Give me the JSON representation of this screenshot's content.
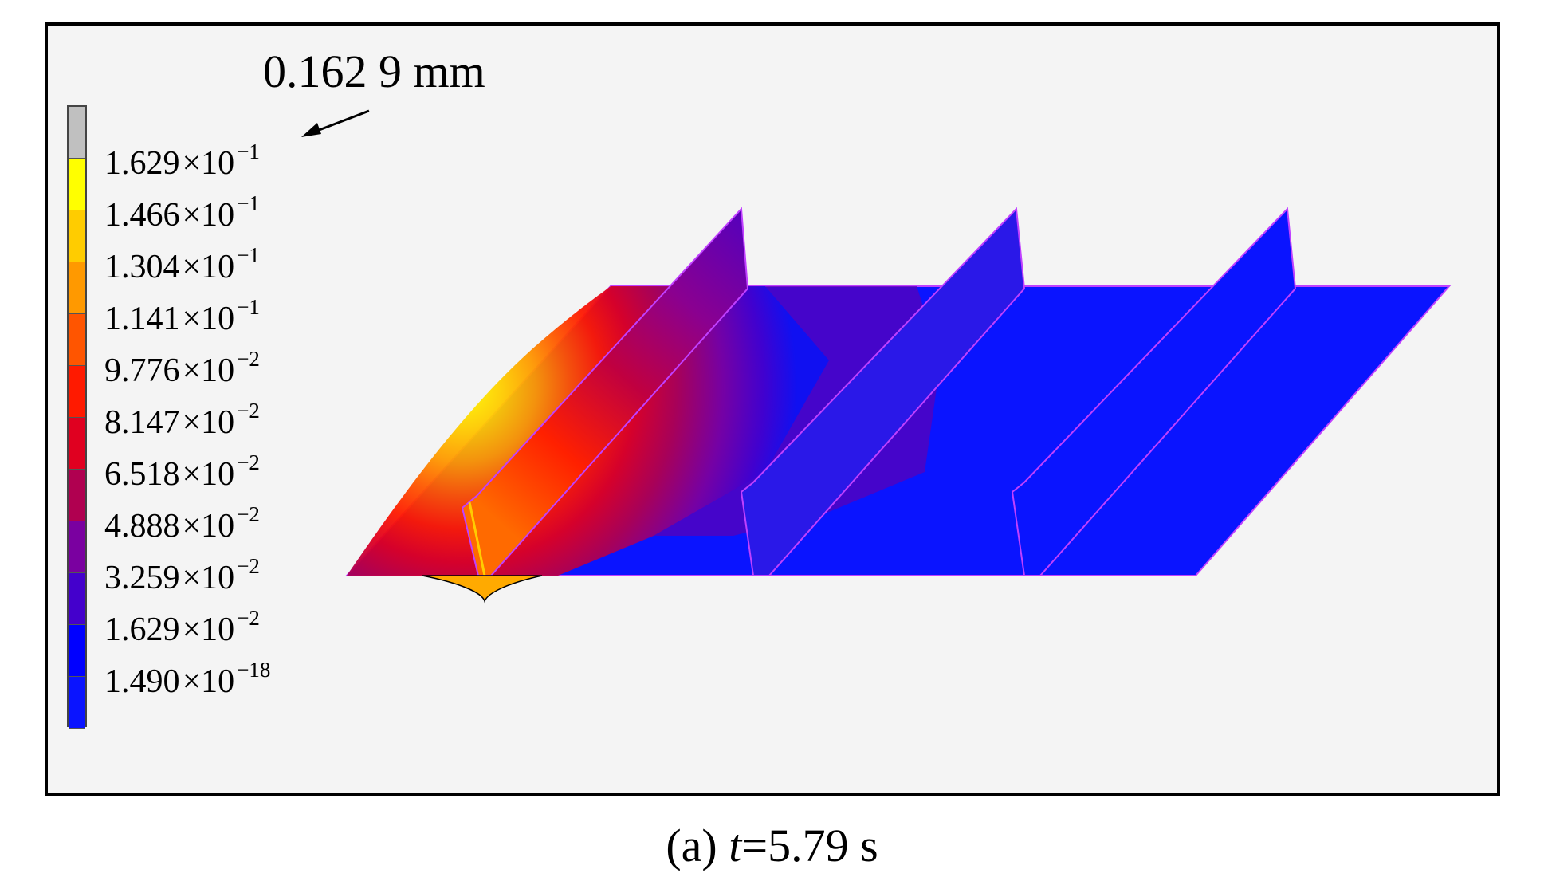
{
  "max_callout": "0.162 9 mm",
  "legend": {
    "top_cap_color": "#c0c0c0",
    "bottom_cap_color": "#6a6a6a",
    "levels": [
      {
        "mantissa": "1.629",
        "exponent": "−1",
        "color": "#ffff00"
      },
      {
        "mantissa": "1.466",
        "exponent": "−1",
        "color": "#ffcc00"
      },
      {
        "mantissa": "1.304",
        "exponent": "−1",
        "color": "#ff9900"
      },
      {
        "mantissa": "1.141",
        "exponent": "−1",
        "color": "#ff5500"
      },
      {
        "mantissa": "9.776",
        "exponent": "−2",
        "color": "#ff1a00"
      },
      {
        "mantissa": "8.147",
        "exponent": "−2",
        "color": "#e00020"
      },
      {
        "mantissa": "6.518",
        "exponent": "−2",
        "color": "#b00050"
      },
      {
        "mantissa": "4.888",
        "exponent": "−2",
        "color": "#7a00a0"
      },
      {
        "mantissa": "3.259",
        "exponent": "−2",
        "color": "#4400cc"
      },
      {
        "mantissa": "1.629",
        "exponent": "−2",
        "color": "#0000ff"
      },
      {
        "mantissa": "1.490",
        "exponent": "−18",
        "color": "#0a14ff"
      }
    ]
  },
  "caption": {
    "prefix": "(a) ",
    "var": "t",
    "rest": "=5.79 s"
  }
}
